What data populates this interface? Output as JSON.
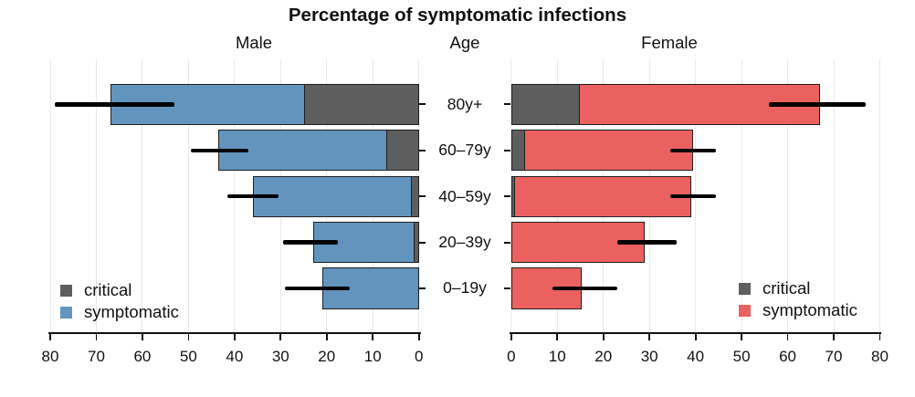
{
  "title": "Percentage of symptomatic infections",
  "panel_labels": {
    "left": "Male",
    "center": "Age",
    "right": "Female"
  },
  "legend": {
    "critical": "critical",
    "symptomatic": "symptomatic"
  },
  "colors": {
    "critical": "#5e5e5e",
    "male_symptomatic": "#6294be",
    "female_symptomatic": "#eb615f",
    "bar_border": "#1f1f1f",
    "error_bar": "#000000",
    "gridline": "#e8e8e8",
    "axis": "#111111"
  },
  "chart_data": {
    "type": "bar",
    "variant": "diverging age-pyramid with stacked segments and error bars",
    "title": "Percentage of symptomatic infections",
    "categories": [
      "80y+",
      "60–79y",
      "40–59y",
      "20–39y",
      "0–19y"
    ],
    "x_ticks": [
      0,
      10,
      20,
      30,
      40,
      50,
      60,
      70,
      80
    ],
    "xlim": [
      0,
      80
    ],
    "x_unit": "percent",
    "left_axis_direction": "reversed (80 to 0, left to right)",
    "right_axis_direction": "normal (0 to 80, left to right)",
    "grid": "light vertical gridlines at every 10",
    "legend_position": "inside lower corners of each panel",
    "series": [
      {
        "name": "Male symptomatic (total %)",
        "values": [
          67,
          43.5,
          36,
          23,
          21
        ]
      },
      {
        "name": "Male critical (%)",
        "values": [
          25,
          7,
          1.8,
          1.2,
          0
        ]
      },
      {
        "name": "Female symptomatic (total %)",
        "values": [
          67,
          39.5,
          39,
          29,
          15.3
        ]
      },
      {
        "name": "Female critical (%)",
        "values": [
          15,
          3,
          0.8,
          0,
          0
        ]
      }
    ],
    "error_bars": {
      "male": [
        [
          53,
          79
        ],
        [
          37,
          49.5
        ],
        [
          30.5,
          41.5
        ],
        [
          17.5,
          29.5
        ],
        [
          15,
          29
        ]
      ],
      "female": [
        [
          56,
          77
        ],
        [
          34.5,
          44.5
        ],
        [
          34.5,
          44.5
        ],
        [
          23,
          36
        ],
        [
          9,
          23
        ]
      ]
    }
  }
}
